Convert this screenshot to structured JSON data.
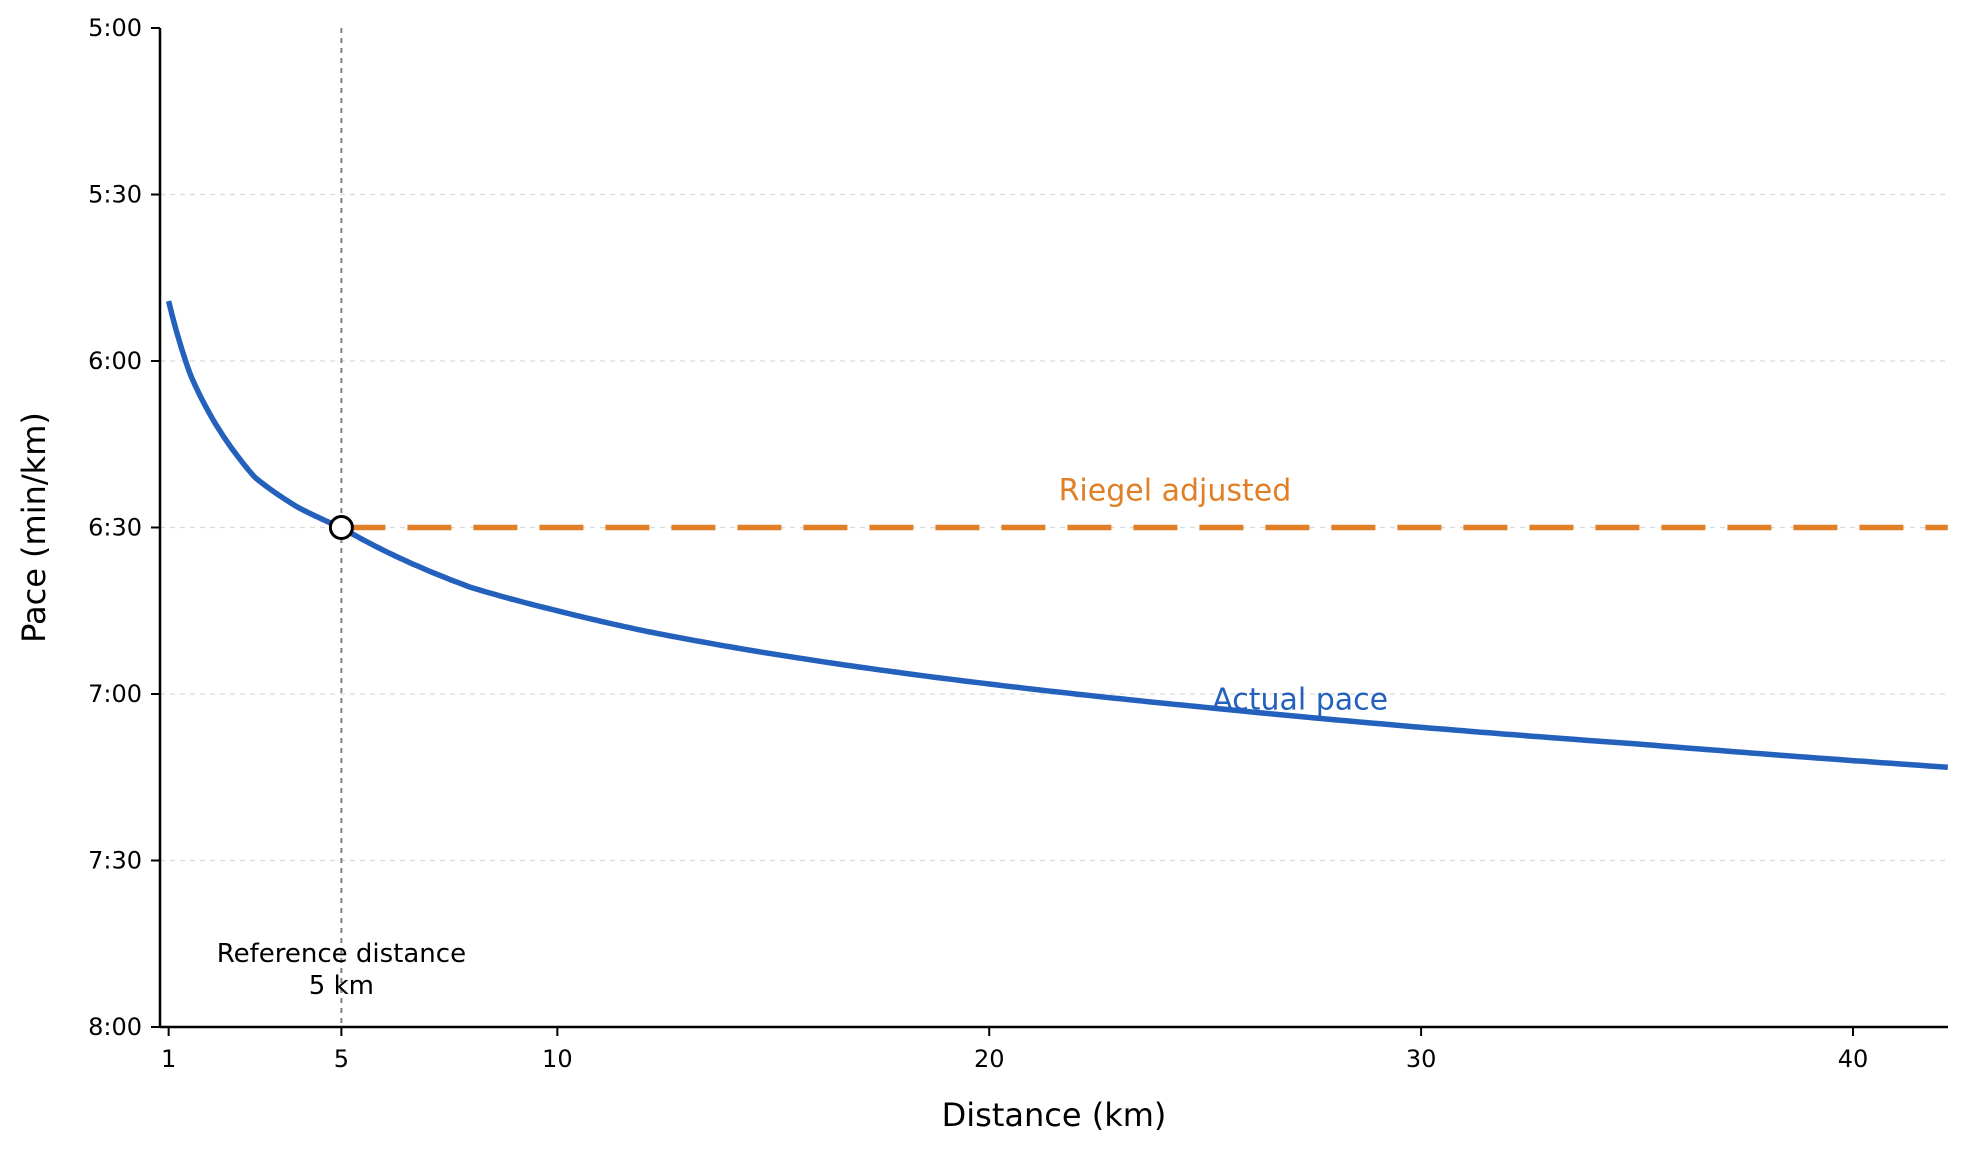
{
  "chart_data": {
    "type": "line",
    "xlabel": "Distance (km)",
    "ylabel": "Pace (min/km)",
    "xlim": [
      0.8,
      42.2
    ],
    "ylim": [
      5.0,
      8.0
    ],
    "y_inverted": true,
    "x_ticks": [
      1,
      5,
      10,
      20,
      30,
      40
    ],
    "y_ticks": [
      {
        "value": 5.0,
        "label": "5:00"
      },
      {
        "value": 5.5,
        "label": "5:30"
      },
      {
        "value": 6.0,
        "label": "6:00"
      },
      {
        "value": 6.5,
        "label": "6:30"
      },
      {
        "value": 7.0,
        "label": "7:00"
      },
      {
        "value": 7.5,
        "label": "7:30"
      },
      {
        "value": 8.0,
        "label": "8:00"
      }
    ],
    "grid": "y-dashed",
    "series": [
      {
        "name": "Actual pace",
        "color": "#2461bd",
        "style": "solid",
        "x": [
          1,
          1.5,
          2,
          3,
          4,
          5,
          6,
          8,
          10,
          12,
          15,
          20,
          25,
          30,
          35,
          40,
          42.195
        ],
        "y": [
          5.82,
          6.04,
          6.17,
          6.35,
          6.44,
          6.5,
          6.57,
          6.68,
          6.75,
          6.81,
          6.88,
          6.97,
          7.04,
          7.1,
          7.15,
          7.2,
          7.22
        ]
      },
      {
        "name": "Riegel adjusted",
        "color": "#e07f26",
        "style": "dashed",
        "x": [
          5,
          42.195
        ],
        "y": [
          6.5,
          6.5
        ]
      }
    ],
    "reference": {
      "x": 5,
      "label_line1": "Reference distance",
      "label_line2": "5 km",
      "marker_y": 6.5
    }
  }
}
